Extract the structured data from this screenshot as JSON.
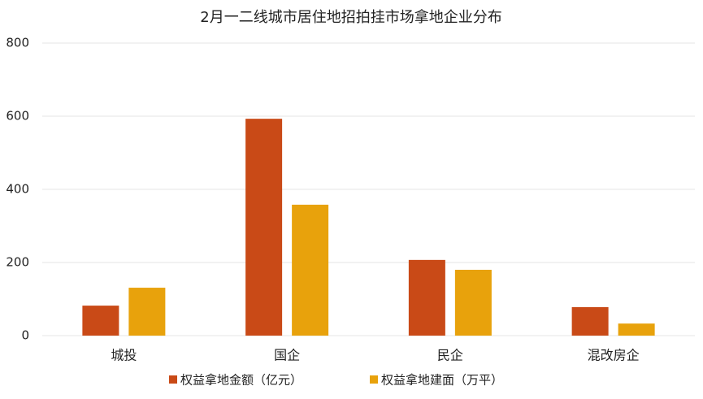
{
  "chart_data": {
    "type": "bar",
    "title": "2月一二线城市居住地招拍挂市场拿地企业分布",
    "categories": [
      "城投",
      "国企",
      "民企",
      "混改房企"
    ],
    "series": [
      {
        "name": "权益拿地金额（亿元）",
        "color": "#c94a17",
        "values": [
          82,
          593,
          207,
          78
        ]
      },
      {
        "name": "权益拿地建面（万平）",
        "color": "#e8a20c",
        "values": [
          131,
          358,
          180,
          33
        ]
      }
    ],
    "ylim": [
      0,
      800
    ],
    "yticks": [
      0,
      200,
      400,
      600,
      800
    ],
    "grid": true,
    "legend": "bottom"
  }
}
